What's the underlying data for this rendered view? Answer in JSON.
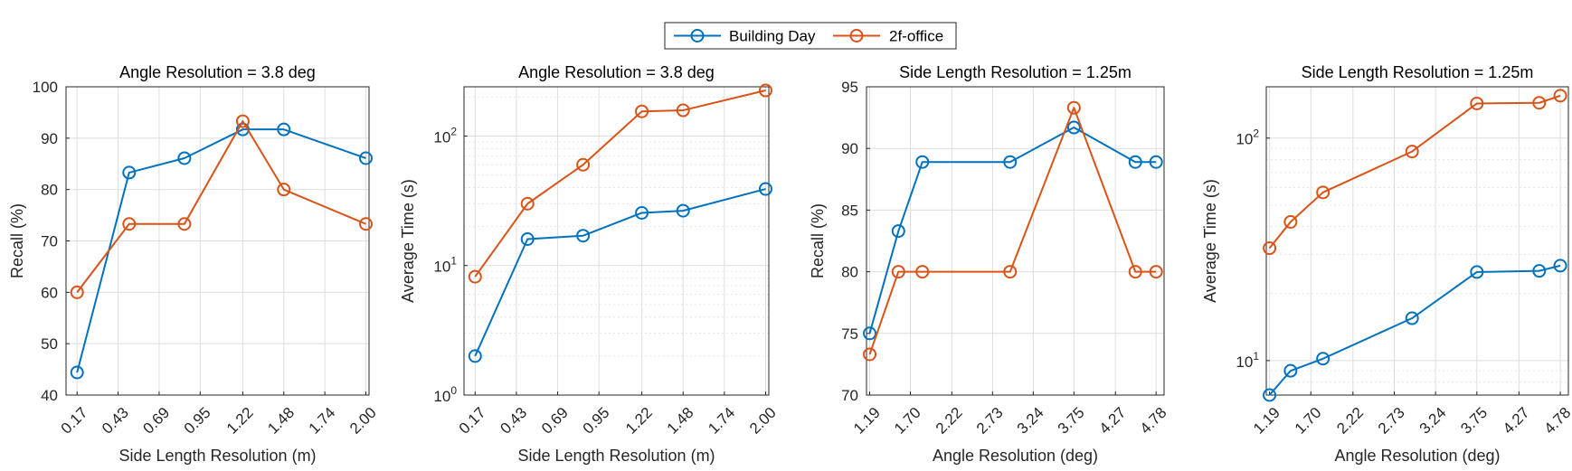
{
  "legend": {
    "entries": [
      {
        "label": "Building Day",
        "color": "#0072BD"
      },
      {
        "label": "2f-office",
        "color": "#D95319"
      }
    ]
  },
  "chart_data": [
    {
      "type": "line",
      "title": "Angle Resolution = 3.8 deg",
      "xlabel": "Side Length Resolution (m)",
      "ylabel": "Recall (%)",
      "yscale": "linear",
      "xlim": [
        0.1,
        2.02
      ],
      "ylim": [
        40,
        100
      ],
      "xticks": [
        0.17,
        0.43,
        0.69,
        0.95,
        1.22,
        1.48,
        1.74,
        2.0
      ],
      "xticklabels": [
        "0.17",
        "0.43",
        "0.69",
        "0.95",
        "1.22",
        "1.48",
        "1.74",
        "2.00"
      ],
      "yticks": [
        40,
        50,
        60,
        70,
        80,
        90,
        100
      ],
      "yticklabels": [
        "40",
        "50",
        "60",
        "70",
        "80",
        "90",
        "100"
      ],
      "x": [
        0.17,
        0.5,
        0.85,
        1.22,
        1.48,
        2.0
      ],
      "series": [
        {
          "name": "Building Day",
          "values": [
            44.4,
            83.3,
            86.1,
            91.7,
            91.7,
            86.1
          ]
        },
        {
          "name": "2f-office",
          "values": [
            60.0,
            73.3,
            73.3,
            93.3,
            80.0,
            73.3
          ]
        }
      ]
    },
    {
      "type": "line",
      "title": "Angle Resolution = 3.8 deg",
      "xlabel": "Side Length Resolution (m)",
      "ylabel": "Average Time (s)",
      "yscale": "log",
      "xlim": [
        0.1,
        2.02
      ],
      "ylim": [
        1,
        240
      ],
      "xticks": [
        0.17,
        0.43,
        0.69,
        0.95,
        1.22,
        1.48,
        1.74,
        2.0
      ],
      "xticklabels": [
        "0.17",
        "0.43",
        "0.69",
        "0.95",
        "1.22",
        "1.48",
        "1.74",
        "2.00"
      ],
      "yticks": [
        1,
        10,
        100
      ],
      "yticklabels": [
        {
          "base": "10",
          "exp": "0"
        },
        {
          "base": "10",
          "exp": "1"
        },
        {
          "base": "10",
          "exp": "2"
        }
      ],
      "x": [
        0.17,
        0.5,
        0.85,
        1.22,
        1.48,
        2.0
      ],
      "series": [
        {
          "name": "Building Day",
          "values": [
            2.0,
            16.0,
            17.0,
            25.5,
            26.5,
            39.0
          ]
        },
        {
          "name": "2f-office",
          "values": [
            8.2,
            30.0,
            60.0,
            155.0,
            158.0,
            225.0
          ]
        }
      ]
    },
    {
      "type": "line",
      "title": "Side Length Resolution = 1.25m",
      "xlabel": "Angle Resolution (deg)",
      "ylabel": "Recall (%)",
      "yscale": "linear",
      "xlim": [
        1.15,
        4.88
      ],
      "ylim": [
        70,
        95
      ],
      "xticks": [
        1.19,
        1.7,
        2.22,
        2.73,
        3.24,
        3.75,
        4.27,
        4.78
      ],
      "xticklabels": [
        "1.19",
        "1.70",
        "2.22",
        "2.73",
        "3.24",
        "3.75",
        "4.27",
        "4.78"
      ],
      "yticks": [
        70,
        75,
        80,
        85,
        90,
        95
      ],
      "yticklabels": [
        "70",
        "75",
        "80",
        "85",
        "90",
        "95"
      ],
      "x": [
        1.19,
        1.55,
        1.85,
        2.95,
        3.75,
        4.52,
        4.78
      ],
      "series": [
        {
          "name": "Building Day",
          "values": [
            75.0,
            83.3,
            88.9,
            88.9,
            91.7,
            88.9,
            88.9
          ]
        },
        {
          "name": "2f-office",
          "values": [
            73.3,
            80.0,
            80.0,
            80.0,
            93.3,
            80.0,
            80.0
          ]
        }
      ]
    },
    {
      "type": "line",
      "title": "Side Length Resolution = 1.25m",
      "xlabel": "Angle Resolution (deg)",
      "ylabel": "Average Time (s)",
      "yscale": "log",
      "xlim": [
        1.15,
        4.88
      ],
      "ylim": [
        7,
        170
      ],
      "xticks": [
        1.19,
        1.7,
        2.22,
        2.73,
        3.24,
        3.75,
        4.27,
        4.78
      ],
      "xticklabels": [
        "1.19",
        "1.70",
        "2.22",
        "2.73",
        "3.24",
        "3.75",
        "4.27",
        "4.78"
      ],
      "yticks": [
        10,
        100
      ],
      "yticklabels": [
        {
          "base": "10",
          "exp": "1"
        },
        {
          "base": "10",
          "exp": "2"
        }
      ],
      "x": [
        1.19,
        1.45,
        1.85,
        2.95,
        3.75,
        4.52,
        4.78
      ],
      "series": [
        {
          "name": "Building Day",
          "values": [
            7.0,
            9.0,
            10.2,
            15.5,
            25.0,
            25.3,
            26.7
          ]
        },
        {
          "name": "2f-office",
          "values": [
            32.0,
            42.0,
            57.0,
            87.0,
            143.0,
            144.0,
            155.0
          ]
        }
      ]
    }
  ]
}
